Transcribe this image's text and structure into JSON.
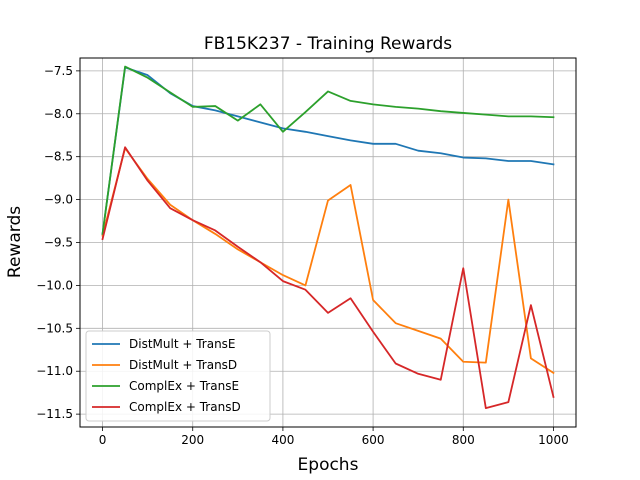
{
  "chart_data": {
    "type": "line",
    "title": "FB15K237 - Training Rewards",
    "xlabel": "Epochs",
    "ylabel": "Rewards",
    "xlim": [
      -50,
      1050
    ],
    "ylim": [
      -11.65,
      -7.35
    ],
    "xticks": [
      0,
      200,
      400,
      600,
      800,
      1000
    ],
    "yticks": [
      -7.5,
      -8.0,
      -8.5,
      -9.0,
      -9.5,
      -10.0,
      -10.5,
      -11.0,
      -11.5
    ],
    "xtick_labels": [
      "0",
      "200",
      "400",
      "600",
      "800",
      "1000"
    ],
    "ytick_labels": [
      "−7.5",
      "−8.0",
      "−8.5",
      "−9.0",
      "−9.5",
      "−10.0",
      "−10.5",
      "−11.0",
      "−11.5"
    ],
    "grid": true,
    "legend_position": "lower-left",
    "x": [
      0,
      50,
      100,
      150,
      200,
      250,
      300,
      350,
      400,
      450,
      500,
      550,
      600,
      650,
      700,
      750,
      800,
      850,
      900,
      950,
      1000
    ],
    "series": [
      {
        "name": "DistMult + TransE",
        "color": "#1f77b4",
        "values": [
          -9.4,
          -7.46,
          -7.55,
          -7.76,
          -7.91,
          -7.96,
          -8.03,
          -8.1,
          -8.17,
          -8.21,
          -8.26,
          -8.31,
          -8.35,
          -8.35,
          -8.43,
          -8.46,
          -8.51,
          -8.52,
          -8.55,
          -8.55,
          -8.59
        ]
      },
      {
        "name": "DistMult + TransD",
        "color": "#ff7f0e",
        "values": [
          -9.42,
          -8.4,
          -8.76,
          -9.06,
          -9.24,
          -9.4,
          -9.58,
          -9.73,
          -9.88,
          -10.0,
          -9.01,
          -8.83,
          -10.17,
          -10.44,
          -10.53,
          -10.62,
          -10.89,
          -10.9,
          -9.0,
          -10.85,
          -11.02
        ]
      },
      {
        "name": "ComplEx + TransE",
        "color": "#2ca02c",
        "values": [
          -9.4,
          -7.45,
          -7.58,
          -7.75,
          -7.92,
          -7.91,
          -8.08,
          -7.89,
          -8.21,
          -7.98,
          -7.74,
          -7.85,
          -7.89,
          -7.92,
          -7.94,
          -7.97,
          -7.99,
          -8.01,
          -8.03,
          -8.03,
          -8.04
        ]
      },
      {
        "name": "ComplEx + TransD",
        "color": "#d62728",
        "values": [
          -9.46,
          -8.39,
          -8.78,
          -9.1,
          -9.24,
          -9.36,
          -9.55,
          -9.73,
          -9.95,
          -10.05,
          -10.32,
          -10.15,
          -10.54,
          -10.91,
          -11.03,
          -11.1,
          -9.8,
          -11.43,
          -11.36,
          -10.23,
          -11.3
        ]
      }
    ]
  }
}
